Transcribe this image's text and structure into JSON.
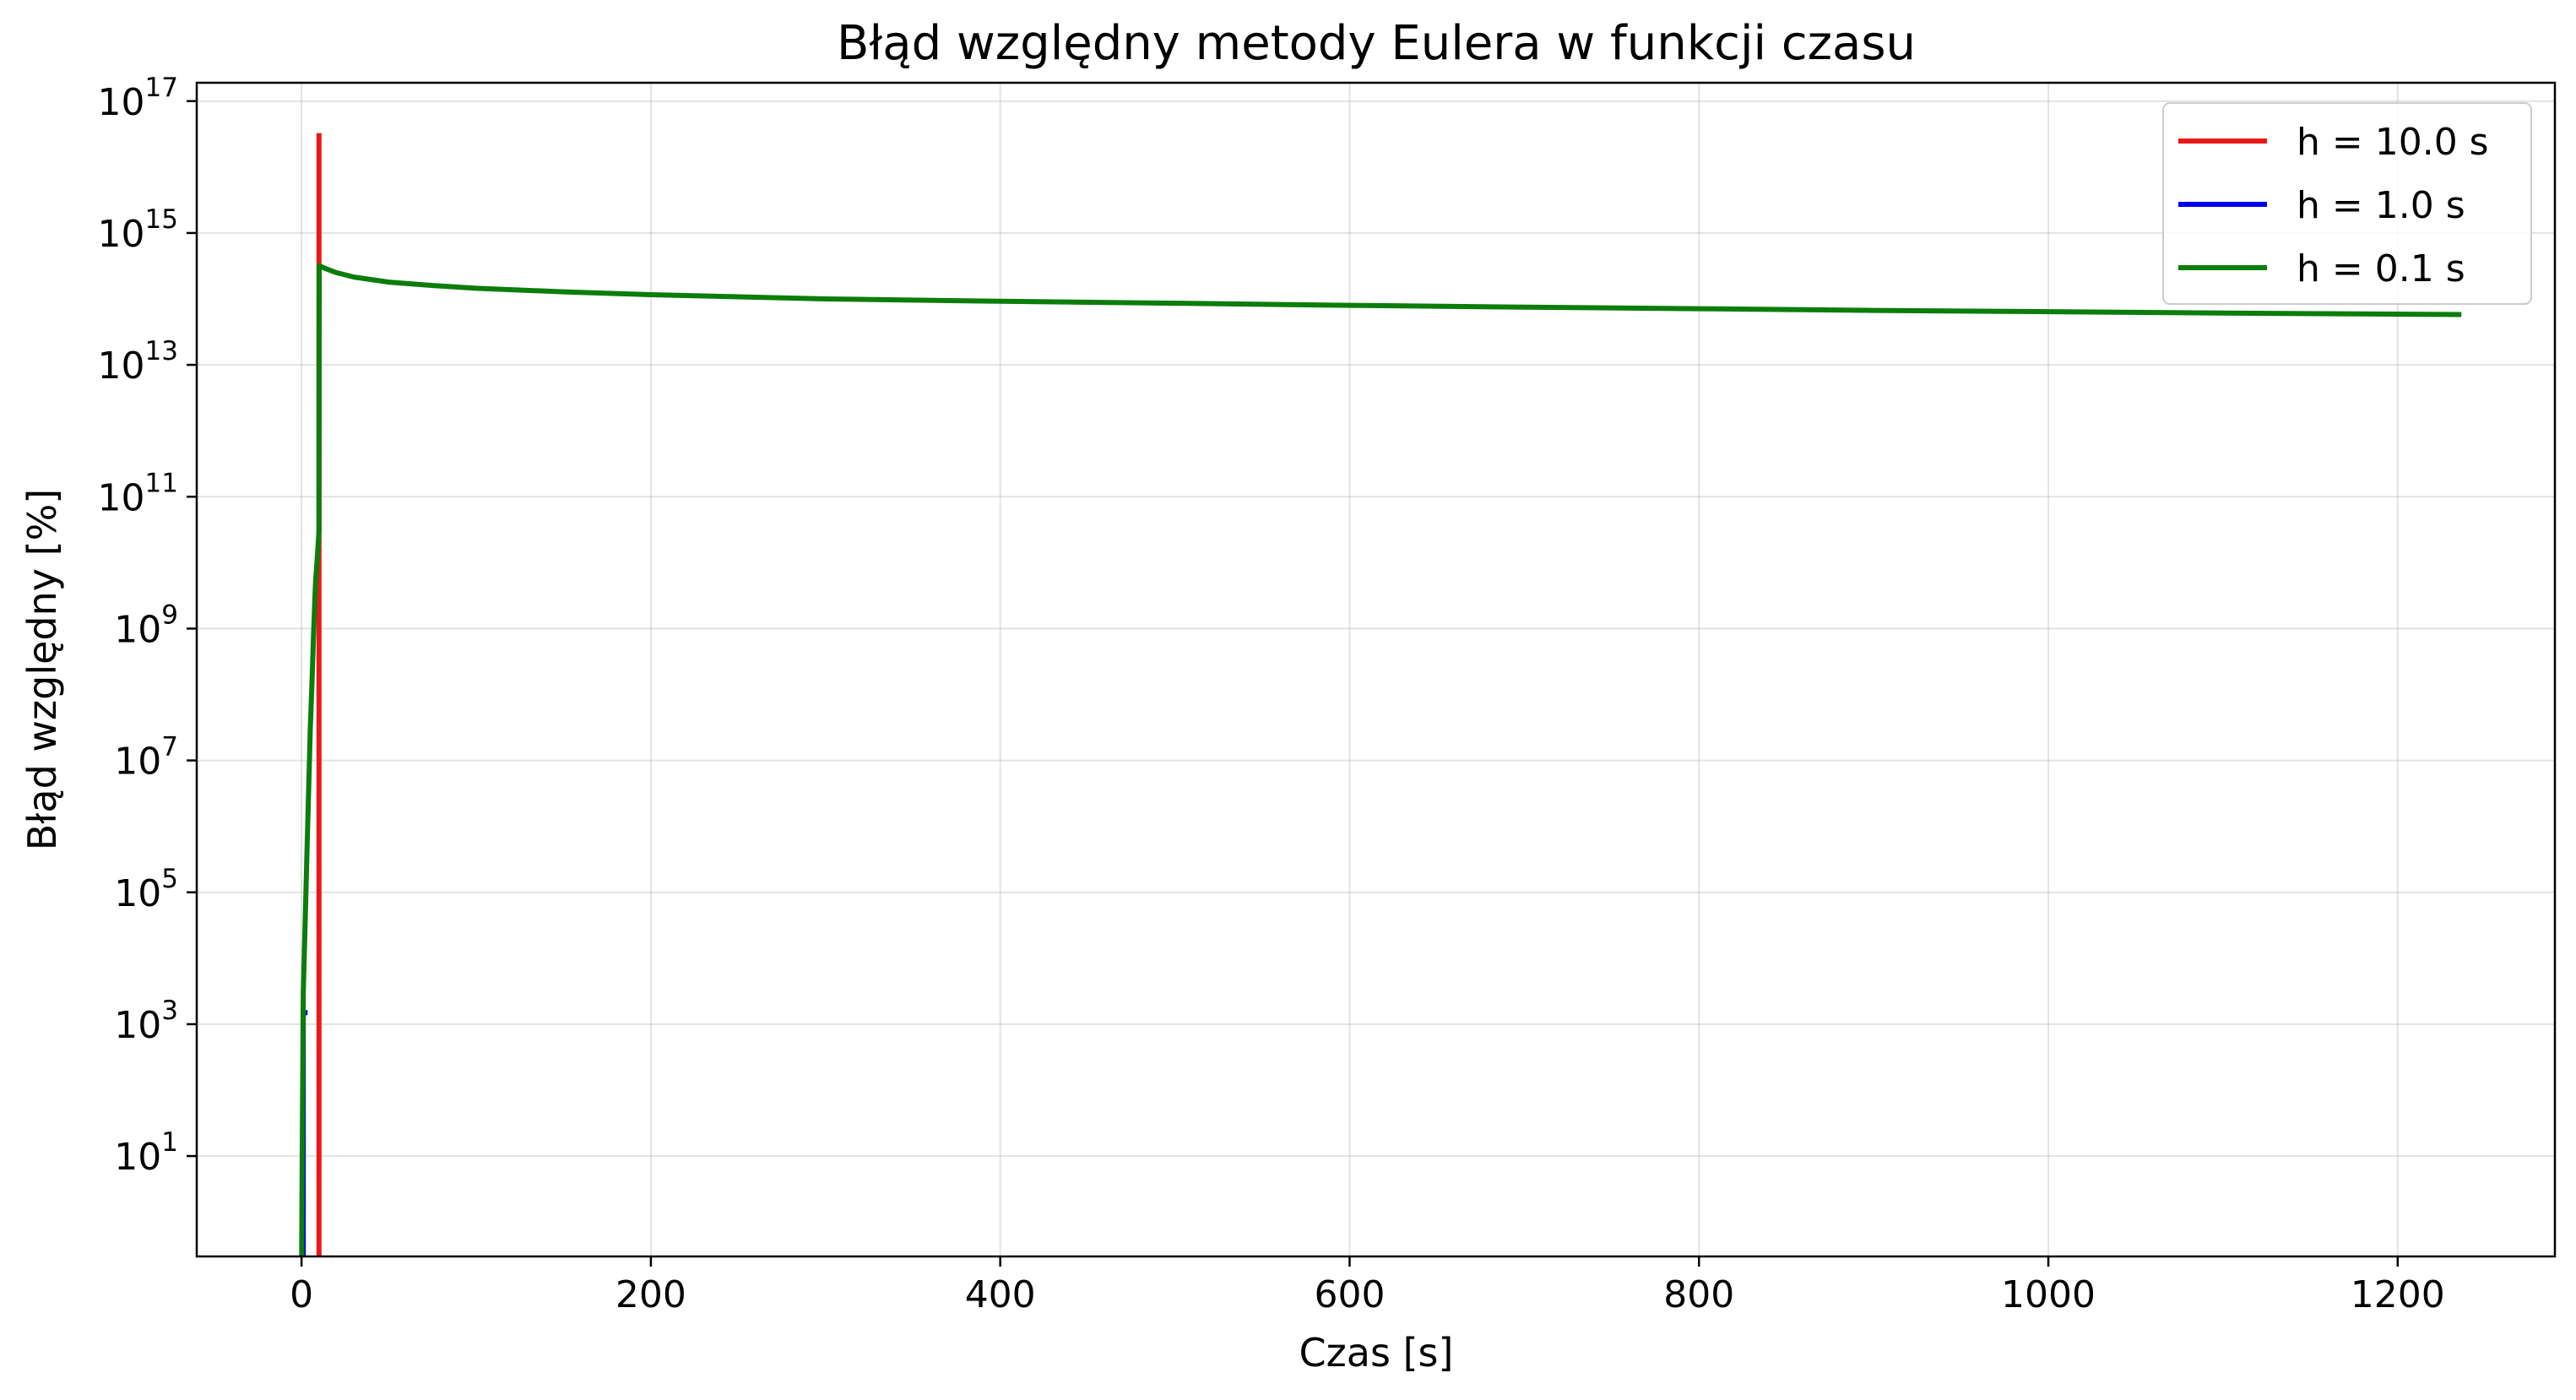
{
  "chart_data": {
    "type": "line",
    "title": "Błąd względny metody Eulera w funkcji czasu",
    "xlabel": "Czas [s]",
    "ylabel": "Błąd względny [%]",
    "xscale": "linear",
    "yscale": "log",
    "xlim": [
      -60,
      1290
    ],
    "ylim": [
      0.3,
      1.9e+17
    ],
    "xticks": [
      0,
      200,
      400,
      600,
      800,
      1000,
      1200
    ],
    "xtick_labels": [
      "0",
      "200",
      "400",
      "600",
      "800",
      "1000",
      "1200"
    ],
    "yticks": [
      10.0,
      1000.0,
      100000.0,
      10000000.0,
      1000000000.0,
      100000000000.0,
      10000000000000.0,
      1000000000000000.0,
      1e+17
    ],
    "ytick_labels": [
      {
        "base": "10",
        "exp": "1"
      },
      {
        "base": "10",
        "exp": "3"
      },
      {
        "base": "10",
        "exp": "5"
      },
      {
        "base": "10",
        "exp": "7"
      },
      {
        "base": "10",
        "exp": "9"
      },
      {
        "base": "10",
        "exp": "11"
      },
      {
        "base": "10",
        "exp": "13"
      },
      {
        "base": "10",
        "exp": "15"
      },
      {
        "base": "10",
        "exp": "17"
      }
    ],
    "grid": true,
    "legend_position": "top-right",
    "series": [
      {
        "name": "h = 10.0 s",
        "color": "#e8191b",
        "x": [
          10,
          10
        ],
        "y": [
          0.3,
          3e+16
        ]
      },
      {
        "name": "h = 1.0 s",
        "color": "#0000ee",
        "x": [
          1,
          1,
          2
        ],
        "y": [
          0.3,
          1500.0,
          1500.0
        ]
      },
      {
        "name": "h = 0.1 s",
        "color": "#0b7d0b",
        "x": [
          0.1,
          0.3,
          1,
          2,
          3,
          4,
          5,
          6,
          7,
          8,
          9,
          10,
          10.1,
          11,
          15,
          20,
          30,
          50,
          75,
          100,
          150,
          200,
          300,
          400,
          500,
          600,
          700,
          800,
          900,
          1000,
          1100,
          1235
        ],
        "y": [
          0.3,
          5,
          3000.0,
          30000.0,
          300000.0,
          3000000.0,
          30000000.0,
          150000000.0,
          1000000000.0,
          5000000000.0,
          12000000000.0,
          30000000000.0,
          320000000000000.0,
          310000000000000.0,
          280000000000000.0,
          250000000000000.0,
          215000000000000.0,
          180000000000000.0,
          160000000000000.0,
          145000000000000.0,
          128000000000000.0,
          116000000000000.0,
          100000000000000.0,
          92000000000000.0,
          86000000000000.0,
          80000000000000.0,
          75000000000000.0,
          71000000000000.0,
          67000000000000.0,
          64000000000000.0,
          61000000000000.0,
          58000000000000.0
        ]
      }
    ]
  }
}
